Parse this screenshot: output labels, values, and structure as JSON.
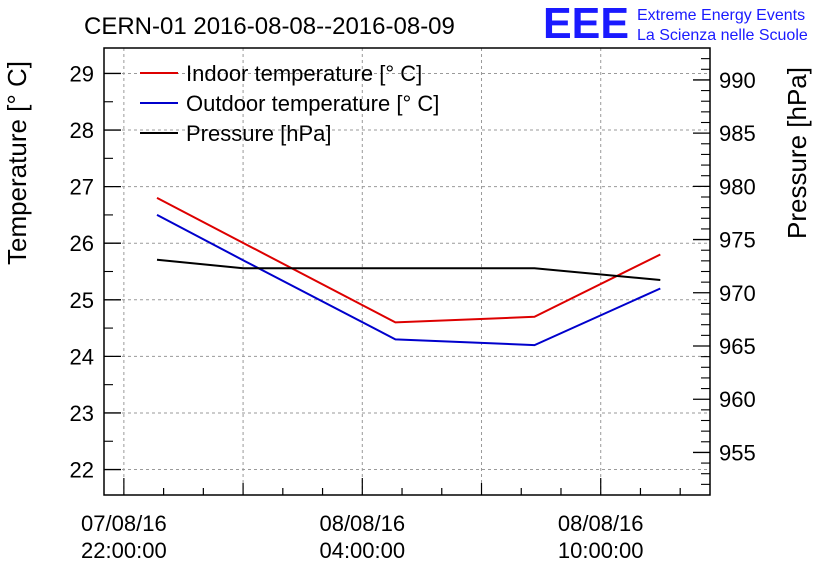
{
  "chart_data": {
    "type": "line",
    "title": "CERN-01 2016-08-08--2016-08-09",
    "ylabel": "Temperature [° C]",
    "y2label": "Pressure [hPa]",
    "xlabel": "",
    "ylim": [
      21.55,
      29.45
    ],
    "y2lim": [
      951,
      993
    ],
    "x_tick_labels": [
      {
        "x": "2016-08-07 22:00:00",
        "line1": "07/08/16",
        "line2": "22:00:00"
      },
      {
        "x": "2016-08-08 04:00:00",
        "line1": "08/08/16",
        "line2": "04:00:00"
      },
      {
        "x": "2016-08-08 10:00:00",
        "line1": "08/08/16",
        "line2": "10:00:00"
      }
    ],
    "xlim": [
      "2016-08-07 21:30:00",
      "2016-08-08 12:45:00"
    ],
    "y_ticks": [
      22,
      23,
      24,
      25,
      26,
      27,
      28,
      29
    ],
    "y2_ticks": [
      955,
      960,
      965,
      970,
      975,
      980,
      985,
      990
    ],
    "grid": true,
    "legend_position": "top-left",
    "series": [
      {
        "name": "Indoor temperature [° C]",
        "axis": "left",
        "color": "#dd0000",
        "x": [
          "2016-08-07 22:50:00",
          "2016-08-08 04:50:00",
          "2016-08-08 08:20:00",
          "2016-08-08 11:30:00"
        ],
        "y": [
          26.8,
          24.6,
          24.7,
          25.8
        ]
      },
      {
        "name": "Outdoor temperature [° C]",
        "axis": "left",
        "color": "#0000cc",
        "x": [
          "2016-08-07 22:50:00",
          "2016-08-08 01:00:00",
          "2016-08-08 04:50:00",
          "2016-08-08 08:20:00",
          "2016-08-08 11:30:00"
        ],
        "y": [
          26.5,
          25.7,
          24.3,
          24.2,
          25.2
        ]
      },
      {
        "name": "Pressure [hPa]",
        "axis": "right",
        "color": "#000000",
        "x": [
          "2016-08-07 22:50:00",
          "2016-08-08 01:00:00",
          "2016-08-08 04:50:00",
          "2016-08-08 08:20:00",
          "2016-08-08 11:30:00"
        ],
        "y": [
          973.1,
          972.3,
          972.3,
          972.3,
          971.2
        ]
      }
    ]
  },
  "logo": {
    "mark": "EEE",
    "line1": "Extreme Energy Events",
    "line2": "La Scienza nelle Scuole",
    "color": "#1a1aff"
  }
}
